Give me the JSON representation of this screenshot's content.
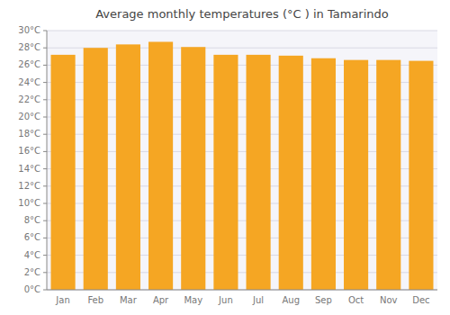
{
  "chart_data": {
    "type": "bar",
    "title": "Average monthly temperatures (°C ) in Tamarindo",
    "categories": [
      "Jan",
      "Feb",
      "Mar",
      "Apr",
      "May",
      "Jun",
      "Jul",
      "Aug",
      "Sep",
      "Oct",
      "Nov",
      "Dec"
    ],
    "values": [
      27.2,
      28.0,
      28.4,
      28.7,
      28.1,
      27.2,
      27.2,
      27.1,
      26.8,
      26.6,
      26.6,
      26.5
    ],
    "color": "#F5A623",
    "ylim": [
      0,
      30
    ],
    "yticks": [
      {
        "value": 0,
        "label": "0°C"
      },
      {
        "value": 2,
        "label": "2°C"
      },
      {
        "value": 4,
        "label": "4°C"
      },
      {
        "value": 6,
        "label": "6°C"
      },
      {
        "value": 8,
        "label": "8°C"
      },
      {
        "value": 10,
        "label": "10°C"
      },
      {
        "value": 12,
        "label": "12°C"
      },
      {
        "value": 14,
        "label": "14°C"
      },
      {
        "value": 16,
        "label": "16°C"
      },
      {
        "value": 18,
        "label": "18°C"
      },
      {
        "value": 20,
        "label": "20°C"
      },
      {
        "value": 22,
        "label": "22°C"
      },
      {
        "value": 24,
        "label": "24°C"
      },
      {
        "value": 26,
        "label": "26°C"
      },
      {
        "value": 28,
        "label": "28°C"
      },
      {
        "value": 30,
        "label": "30°C"
      }
    ],
    "grid": true
  }
}
